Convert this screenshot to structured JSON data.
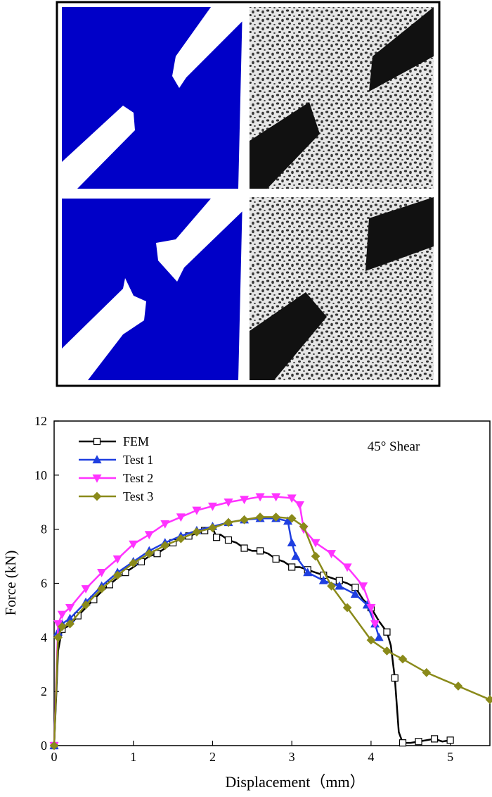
{
  "chart_data": {
    "type": "line",
    "annotation": "45° Shear",
    "x_label": "Displacement（mm）",
    "y_label": "Force (kN)",
    "xlim": [
      0,
      5.5
    ],
    "ylim": [
      0,
      12
    ],
    "xticks": [
      0,
      1,
      2,
      3,
      4,
      5
    ],
    "yticks": [
      0,
      2,
      4,
      6,
      8,
      10,
      12
    ],
    "series": [
      {
        "name": "FEM",
        "color": "#000000",
        "marker": "square",
        "x": [
          0,
          0.05,
          0.1,
          0.2,
          0.3,
          0.4,
          0.5,
          0.6,
          0.7,
          0.8,
          0.9,
          1.0,
          1.1,
          1.2,
          1.3,
          1.4,
          1.5,
          1.6,
          1.7,
          1.8,
          1.9,
          2.0,
          2.05,
          2.1,
          2.2,
          2.3,
          2.4,
          2.5,
          2.6,
          2.7,
          2.8,
          2.9,
          3.0,
          3.1,
          3.2,
          3.3,
          3.4,
          3.5,
          3.6,
          3.7,
          3.8,
          3.9,
          4.0,
          4.1,
          4.2,
          4.25,
          4.3,
          4.35,
          4.4,
          4.5,
          4.6,
          4.7,
          4.8,
          4.9,
          5.0
        ],
        "values": [
          0,
          3.5,
          4.3,
          4.45,
          4.8,
          5.1,
          5.4,
          5.7,
          5.95,
          6.2,
          6.4,
          6.6,
          6.8,
          7.0,
          7.1,
          7.3,
          7.5,
          7.65,
          7.75,
          7.85,
          7.95,
          8.05,
          7.7,
          7.8,
          7.6,
          7.5,
          7.3,
          7.2,
          7.2,
          7.1,
          6.9,
          6.8,
          6.6,
          6.6,
          6.5,
          6.4,
          6.3,
          6.2,
          6.1,
          6.0,
          5.85,
          5.4,
          5.1,
          4.6,
          4.2,
          3.7,
          2.5,
          0.5,
          0.1,
          0.1,
          0.15,
          0.2,
          0.25,
          0.15,
          0.2
        ]
      },
      {
        "name": "Test 1",
        "color": "#1f3fe0",
        "marker": "triangle",
        "x": [
          0,
          0.05,
          0.1,
          0.2,
          0.4,
          0.6,
          0.8,
          1.0,
          1.2,
          1.4,
          1.6,
          1.8,
          2.0,
          2.2,
          2.4,
          2.6,
          2.8,
          2.95,
          3.0,
          3.05,
          3.2,
          3.4,
          3.6,
          3.8,
          3.95,
          4.05,
          4.1
        ],
        "values": [
          0,
          4.2,
          4.5,
          4.7,
          5.3,
          5.9,
          6.4,
          6.8,
          7.2,
          7.5,
          7.75,
          7.95,
          8.1,
          8.25,
          8.35,
          8.4,
          8.4,
          8.3,
          7.5,
          7.0,
          6.4,
          6.1,
          5.9,
          5.6,
          5.2,
          4.5,
          4.0
        ]
      },
      {
        "name": "Test 2",
        "color": "#ff33ff",
        "marker": "triangle-down",
        "x": [
          0,
          0.05,
          0.1,
          0.2,
          0.4,
          0.6,
          0.8,
          1.0,
          1.2,
          1.4,
          1.6,
          1.8,
          2.0,
          2.2,
          2.4,
          2.6,
          2.8,
          3.0,
          3.1,
          3.15,
          3.3,
          3.5,
          3.7,
          3.9,
          4.0,
          4.05
        ],
        "values": [
          0,
          4.5,
          4.85,
          5.1,
          5.8,
          6.4,
          6.9,
          7.45,
          7.8,
          8.2,
          8.45,
          8.7,
          8.85,
          9.0,
          9.1,
          9.2,
          9.2,
          9.15,
          8.9,
          8.0,
          7.5,
          7.1,
          6.6,
          5.9,
          5.1,
          4.5
        ]
      },
      {
        "name": "Test 3",
        "color": "#8a8a1a",
        "marker": "diamond",
        "x": [
          0,
          0.05,
          0.1,
          0.2,
          0.4,
          0.6,
          0.8,
          1.0,
          1.2,
          1.4,
          1.6,
          1.8,
          2.0,
          2.2,
          2.4,
          2.6,
          2.8,
          3.0,
          3.15,
          3.3,
          3.5,
          3.7,
          4.0,
          4.2,
          4.4,
          4.7,
          5.1,
          5.5
        ],
        "values": [
          0,
          4.0,
          4.4,
          4.5,
          5.2,
          5.8,
          6.3,
          6.75,
          7.1,
          7.4,
          7.65,
          7.9,
          8.05,
          8.25,
          8.35,
          8.45,
          8.45,
          8.4,
          8.1,
          7.0,
          5.9,
          5.1,
          3.9,
          3.5,
          3.2,
          2.7,
          2.2,
          1.7
        ]
      }
    ]
  }
}
